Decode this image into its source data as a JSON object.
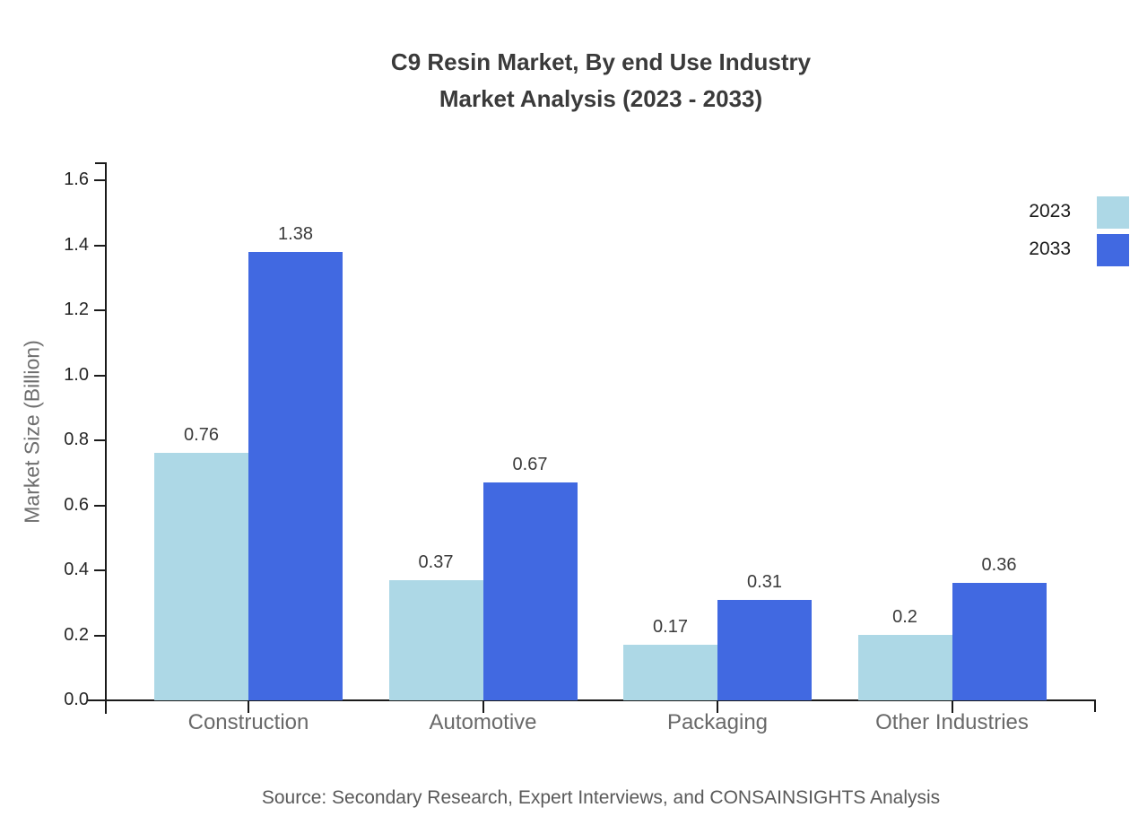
{
  "chart_data": {
    "type": "bar",
    "title_line1": "C9 Resin Market, By end Use Industry",
    "title_line2": "Market Analysis (2023 - 2033)",
    "ylabel": "Market Size (Billion)",
    "xlabel": "",
    "categories": [
      "Construction",
      "Automotive",
      "Packaging",
      "Other Industries"
    ],
    "series": [
      {
        "name": "2023",
        "color": "#ADD8E6",
        "values": [
          0.76,
          0.37,
          0.17,
          0.2
        ]
      },
      {
        "name": "2033",
        "color": "#4169E1",
        "values": [
          1.38,
          0.67,
          0.31,
          0.36
        ]
      }
    ],
    "ylim": [
      0,
      1.6
    ],
    "ytick_labels": [
      "0.0",
      "0.2",
      "0.4",
      "0.6",
      "0.8",
      "1.0",
      "1.2",
      "1.4",
      "1.6"
    ],
    "grid": false,
    "legend_position": "upper right",
    "axis_color": "#1a1a1a"
  },
  "source_note": "Source: Secondary Research, Expert Interviews, and CONSAINSIGHTS Analysis"
}
